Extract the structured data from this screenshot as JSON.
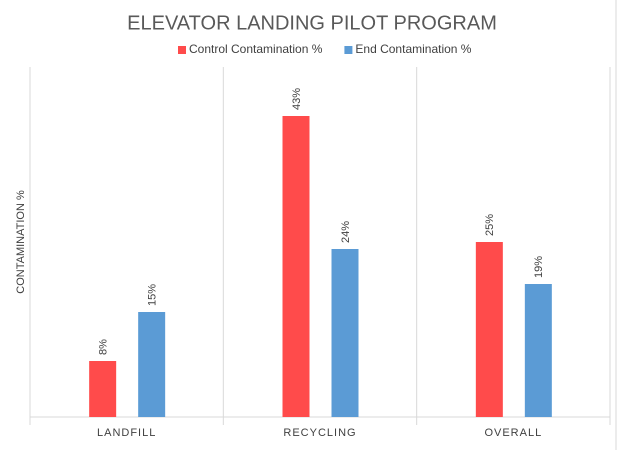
{
  "chart_data": {
    "type": "bar",
    "title": "ELEVATOR LANDING PILOT PROGRAM",
    "y_label": "CONTAMINATION %",
    "categories": [
      "LANDFILL",
      "RECYCLING",
      "OVERALL"
    ],
    "series": [
      {
        "name": "Control Contamination %",
        "color": "#ff4b4b",
        "values": [
          8,
          43,
          25
        ],
        "value_labels": [
          "8%",
          "43%",
          "25%"
        ]
      },
      {
        "name": "End Contamination %",
        "color": "#5b9bd5",
        "values": [
          15,
          24,
          19
        ],
        "value_labels": [
          "15%",
          "24%",
          "19%"
        ]
      }
    ],
    "ylim": [
      0,
      50
    ],
    "legend": "top"
  }
}
